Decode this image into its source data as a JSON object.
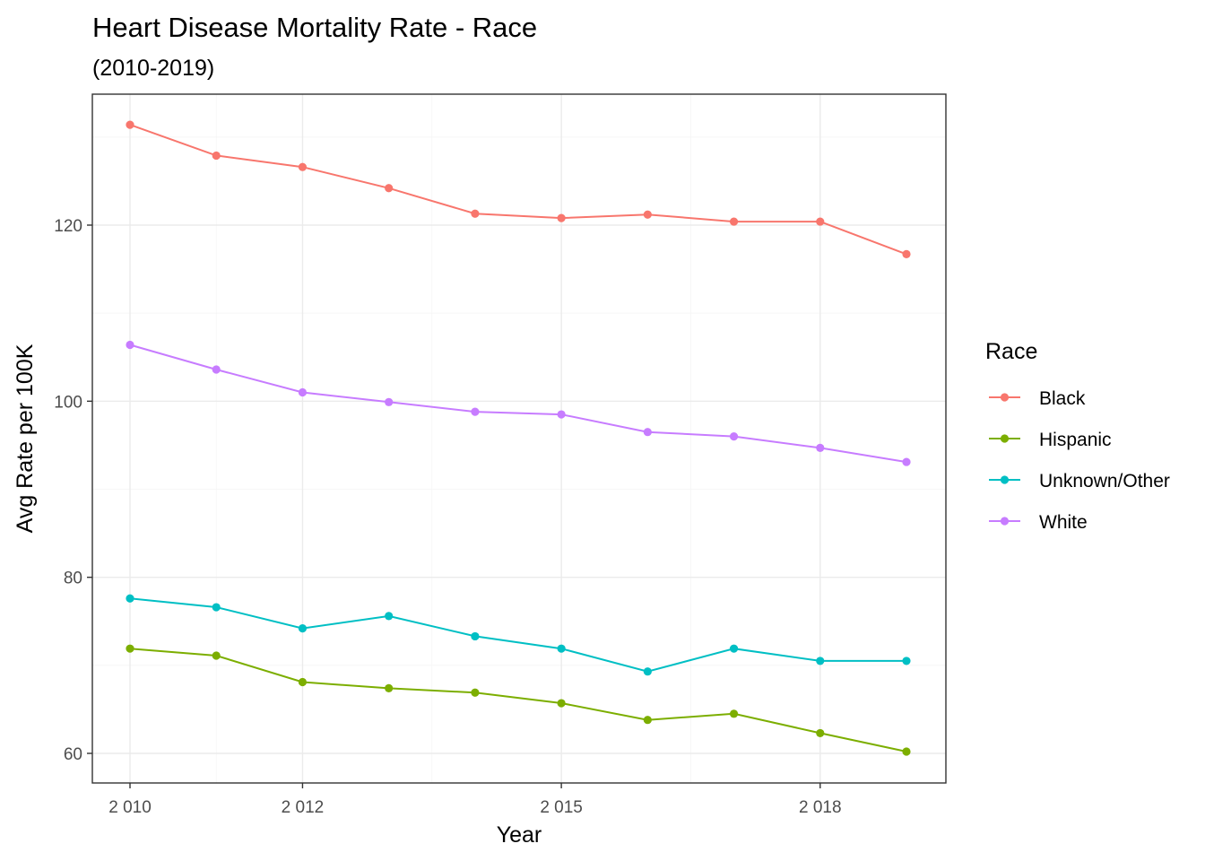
{
  "chart_data": {
    "type": "line",
    "title": "Heart Disease Mortality Rate - Race",
    "subtitle": "(2010-2019)",
    "xlabel": "Year",
    "ylabel": "Avg Rate per 100K",
    "x": [
      2010,
      2011,
      2012,
      2013,
      2014,
      2015,
      2016,
      2017,
      2018,
      2019
    ],
    "x_tick_values": [
      2010,
      2012,
      2015,
      2018
    ],
    "x_tick_labels": [
      "2 010",
      "2 012",
      "2 015",
      "2 018"
    ],
    "y_tick_values": [
      60,
      80,
      100,
      120
    ],
    "y_tick_labels": [
      "60",
      "80",
      "100",
      "120"
    ],
    "legend": {
      "title": "Race",
      "position": "right"
    },
    "grid": true,
    "series": [
      {
        "name": "Black",
        "color": "#F8766D",
        "values": [
          131.4,
          127.9,
          126.6,
          124.2,
          121.3,
          120.8,
          121.2,
          120.4,
          120.4,
          116.7
        ]
      },
      {
        "name": "Hispanic",
        "color": "#7CAE00",
        "values": [
          71.9,
          71.1,
          68.1,
          67.4,
          66.9,
          65.7,
          63.8,
          64.5,
          62.3,
          60.2
        ]
      },
      {
        "name": "Unknown/Other",
        "color": "#00BFC4",
        "values": [
          77.6,
          76.6,
          74.2,
          75.6,
          73.3,
          71.9,
          69.3,
          71.9,
          70.5,
          70.5
        ]
      },
      {
        "name": "White",
        "color": "#C77CFF",
        "values": [
          106.4,
          103.6,
          101.0,
          99.9,
          98.8,
          98.5,
          96.5,
          96.0,
          94.7,
          93.1
        ]
      }
    ]
  }
}
